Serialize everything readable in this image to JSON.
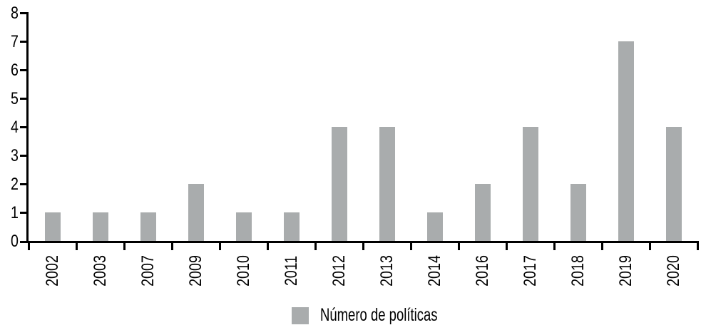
{
  "chart_data": {
    "type": "bar",
    "categories": [
      "2002",
      "2003",
      "2007",
      "2009",
      "2010",
      "2011",
      "2012",
      "2013",
      "2014",
      "2016",
      "2017",
      "2018",
      "2019",
      "2020"
    ],
    "values": [
      1,
      1,
      1,
      2,
      1,
      1,
      4,
      4,
      1,
      2,
      4,
      2,
      7,
      4
    ],
    "title": "",
    "xlabel": "",
    "ylabel": "",
    "ylim": [
      0,
      8
    ],
    "yticks": [
      0,
      1,
      2,
      3,
      4,
      5,
      6,
      7,
      8
    ],
    "grid": false,
    "legend": {
      "label": "Número de políticas",
      "position": "bottom"
    },
    "colors": {
      "bar": "#a9acad",
      "axis": "#000000",
      "text": "#000000",
      "background": "#ffffff"
    }
  }
}
